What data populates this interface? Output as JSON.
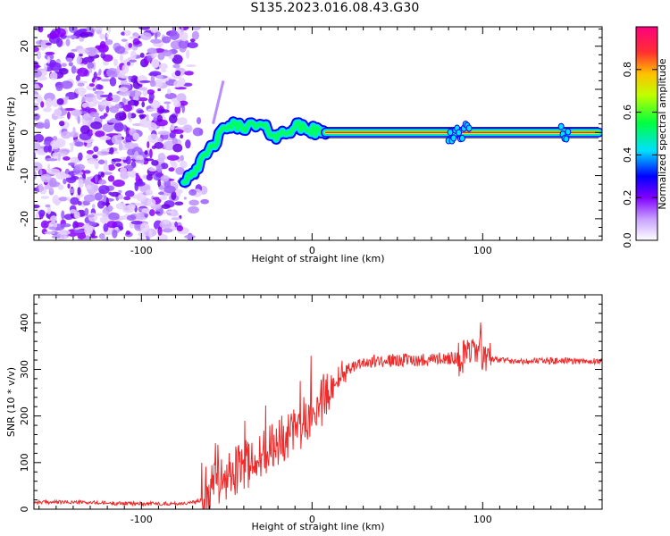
{
  "title": "S135.2023.016.08.43.G30",
  "colors": {
    "snr_line": "#ee2a2a",
    "axes": "#000000"
  },
  "chart_data": [
    {
      "type": "heatmap",
      "xlabel": "Height of straight line (km)",
      "ylabel": "Frequency (Hz)",
      "xlim": [
        -163,
        170
      ],
      "ylim": [
        -25,
        24.5
      ],
      "xticks": [
        -100,
        0,
        100
      ],
      "yticks": [
        20,
        10,
        0,
        -10,
        -20
      ],
      "xtick_labels": [
        "-100",
        "0",
        "100"
      ],
      "ytick_labels": [
        "20",
        "10",
        "0",
        "-10",
        "-20"
      ],
      "colorbar": {
        "label": "Normalized spectral amplitude",
        "range": [
          0,
          1
        ],
        "ticks": [
          0.0,
          0.2,
          0.4,
          0.6,
          0.8
        ],
        "tick_labels": [
          "0.0",
          "0.2",
          "0.4",
          "0.6",
          "0.8"
        ],
        "colormap": [
          "#ffffff",
          "#d9b8ff",
          "#8000ff",
          "#0000ff",
          "#00ffff",
          "#00ff00",
          "#ffff00",
          "#ff8000",
          "#ff0050",
          "#ff0080"
        ]
      },
      "ridge": [
        {
          "x": -75,
          "y": -11
        },
        {
          "x": -65,
          "y": -7
        },
        {
          "x": -58,
          "y": -3
        },
        {
          "x": -50,
          "y": 1.5
        },
        {
          "x": -40,
          "y": 1.5
        },
        {
          "x": -30,
          "y": 1.5
        },
        {
          "x": -20,
          "y": -1
        },
        {
          "x": -10,
          "y": 1.5
        },
        {
          "x": 5,
          "y": 0
        },
        {
          "x": 170,
          "y": 0
        }
      ],
      "noise_region": {
        "x": [
          -163,
          -75
        ],
        "y": [
          -25,
          24.5
        ]
      }
    },
    {
      "type": "line",
      "xlabel": "Height of straight line (km)",
      "ylabel": "SNR (10 * v/v)",
      "xlim": [
        -163,
        170
      ],
      "ylim": [
        0,
        460
      ],
      "xticks": [
        -100,
        0,
        100
      ],
      "yticks": [
        0,
        100,
        200,
        300,
        400
      ],
      "xtick_labels": [
        "-100",
        "0",
        "100"
      ],
      "ytick_labels": [
        "0",
        "100",
        "200",
        "300",
        "400"
      ],
      "series": [
        {
          "color": "#ee2a2a",
          "x": [
            -163,
            -140,
            -120,
            -100,
            -80,
            -70,
            -65,
            -60,
            -55,
            -50,
            -45,
            -40,
            -35,
            -30,
            -25,
            -20,
            -15,
            -10,
            -5,
            0,
            5,
            10,
            15,
            20,
            25,
            30,
            40,
            50,
            60,
            70,
            80,
            90,
            95,
            100,
            102,
            105,
            110,
            120,
            130,
            140,
            150,
            160,
            170
          ],
          "y": [
            15,
            15,
            13,
            12,
            12,
            14,
            20,
            35,
            60,
            75,
            85,
            95,
            105,
            115,
            130,
            145,
            160,
            175,
            185,
            200,
            225,
            255,
            280,
            300,
            310,
            315,
            318,
            320,
            320,
            322,
            325,
            325,
            330,
            335,
            330,
            320,
            320,
            318,
            318,
            318,
            318,
            318,
            318
          ]
        }
      ]
    }
  ]
}
